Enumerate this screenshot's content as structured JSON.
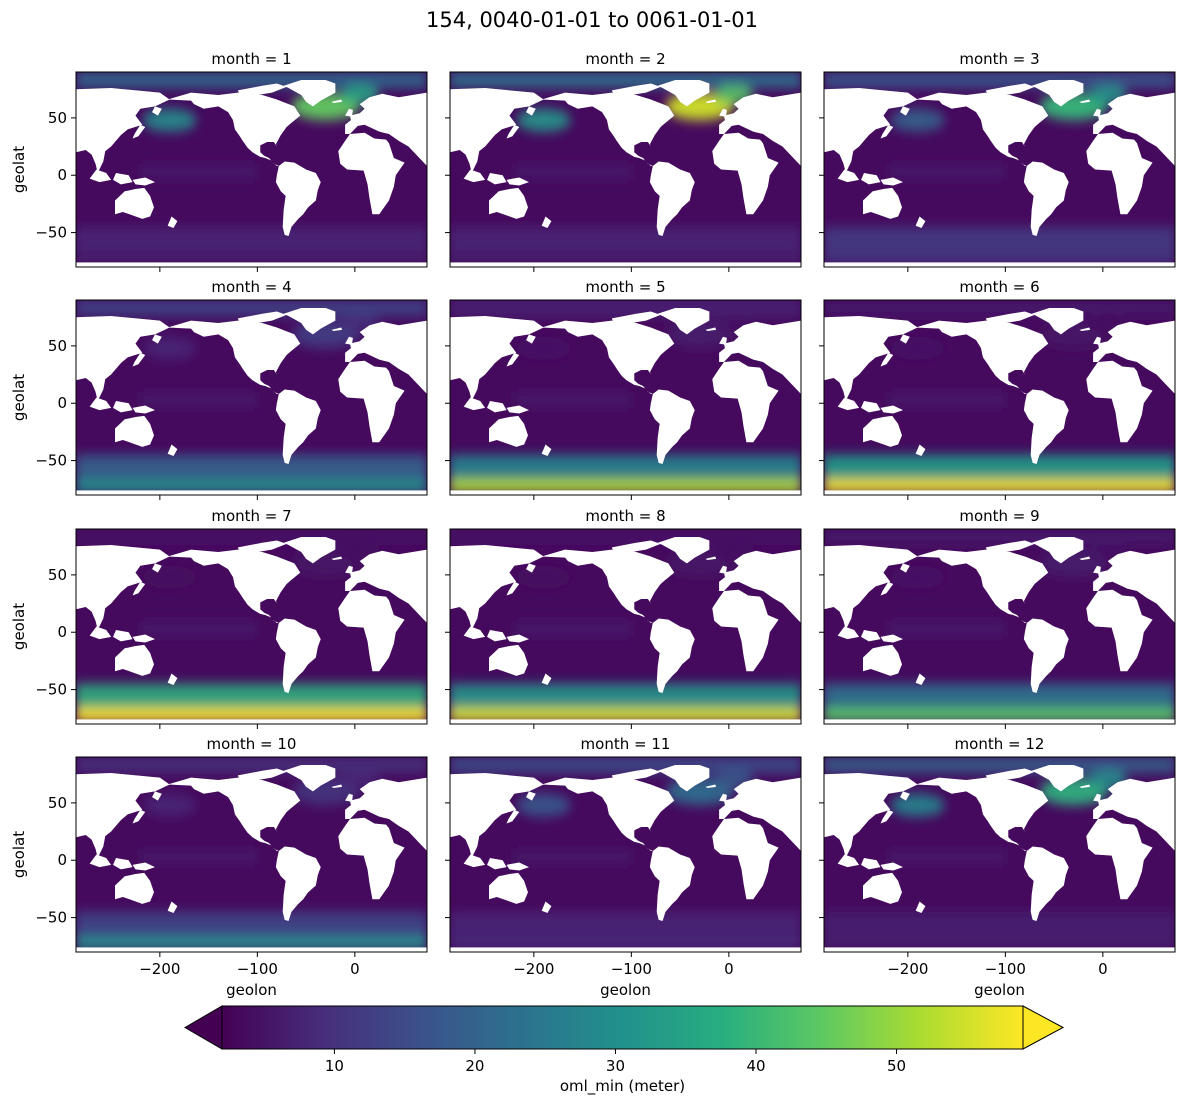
{
  "chart_data": {
    "type": "heatmap",
    "title": "154, 0040-01-01 to 0061-01-01",
    "xlabel": "geolon",
    "ylabel": "geolat",
    "xlim": [
      -286,
      74
    ],
    "ylim": [
      -80,
      90
    ],
    "xticks": [
      -200,
      -100,
      0
    ],
    "xtick_labels": [
      "−200",
      "−100",
      "0"
    ],
    "yticks": [
      -50,
      0,
      50
    ],
    "ytick_labels": [
      "−50",
      "0",
      "50"
    ],
    "colormap": "viridis",
    "colorbar": {
      "label": "oml_min (meter)",
      "range": [
        2,
        59
      ],
      "ticks": [
        10,
        20,
        30,
        40,
        50
      ],
      "extend": "both",
      "orientation": "horizontal"
    },
    "panels": [
      {
        "title": "month = 1",
        "north_atlantic": 45,
        "north_pacific": 30,
        "arctic": 22,
        "southern_ocean": 8,
        "antarctic_shelf": 6
      },
      {
        "title": "month = 2",
        "north_atlantic": 55,
        "north_pacific": 32,
        "arctic": 24,
        "southern_ocean": 8,
        "antarctic_shelf": 6
      },
      {
        "title": "month = 3",
        "north_atlantic": 40,
        "north_pacific": 20,
        "arctic": 18,
        "southern_ocean": 12,
        "antarctic_shelf": 10
      },
      {
        "title": "month = 4",
        "north_atlantic": 12,
        "north_pacific": 8,
        "arctic": 14,
        "southern_ocean": 20,
        "antarctic_shelf": 30
      },
      {
        "title": "month = 5",
        "north_atlantic": 6,
        "north_pacific": 5,
        "arctic": 8,
        "southern_ocean": 28,
        "antarctic_shelf": 52
      },
      {
        "title": "month = 6",
        "north_atlantic": 5,
        "north_pacific": 5,
        "arctic": 6,
        "southern_ocean": 34,
        "antarctic_shelf": 58
      },
      {
        "title": "month = 7",
        "north_atlantic": 5,
        "north_pacific": 4,
        "arctic": 5,
        "southern_ocean": 38,
        "antarctic_shelf": 59
      },
      {
        "title": "month = 8",
        "north_atlantic": 5,
        "north_pacific": 4,
        "arctic": 5,
        "southern_ocean": 32,
        "antarctic_shelf": 56
      },
      {
        "title": "month = 9",
        "north_atlantic": 6,
        "north_pacific": 5,
        "arctic": 6,
        "southern_ocean": 24,
        "antarctic_shelf": 44
      },
      {
        "title": "month = 10",
        "north_atlantic": 10,
        "north_pacific": 8,
        "arctic": 10,
        "southern_ocean": 14,
        "antarctic_shelf": 30
      },
      {
        "title": "month = 11",
        "north_atlantic": 22,
        "north_pacific": 18,
        "arctic": 16,
        "southern_ocean": 8,
        "antarctic_shelf": 8
      },
      {
        "title": "month = 12",
        "north_atlantic": 38,
        "north_pacific": 28,
        "arctic": 20,
        "southern_ocean": 7,
        "antarctic_shelf": 6
      }
    ]
  }
}
